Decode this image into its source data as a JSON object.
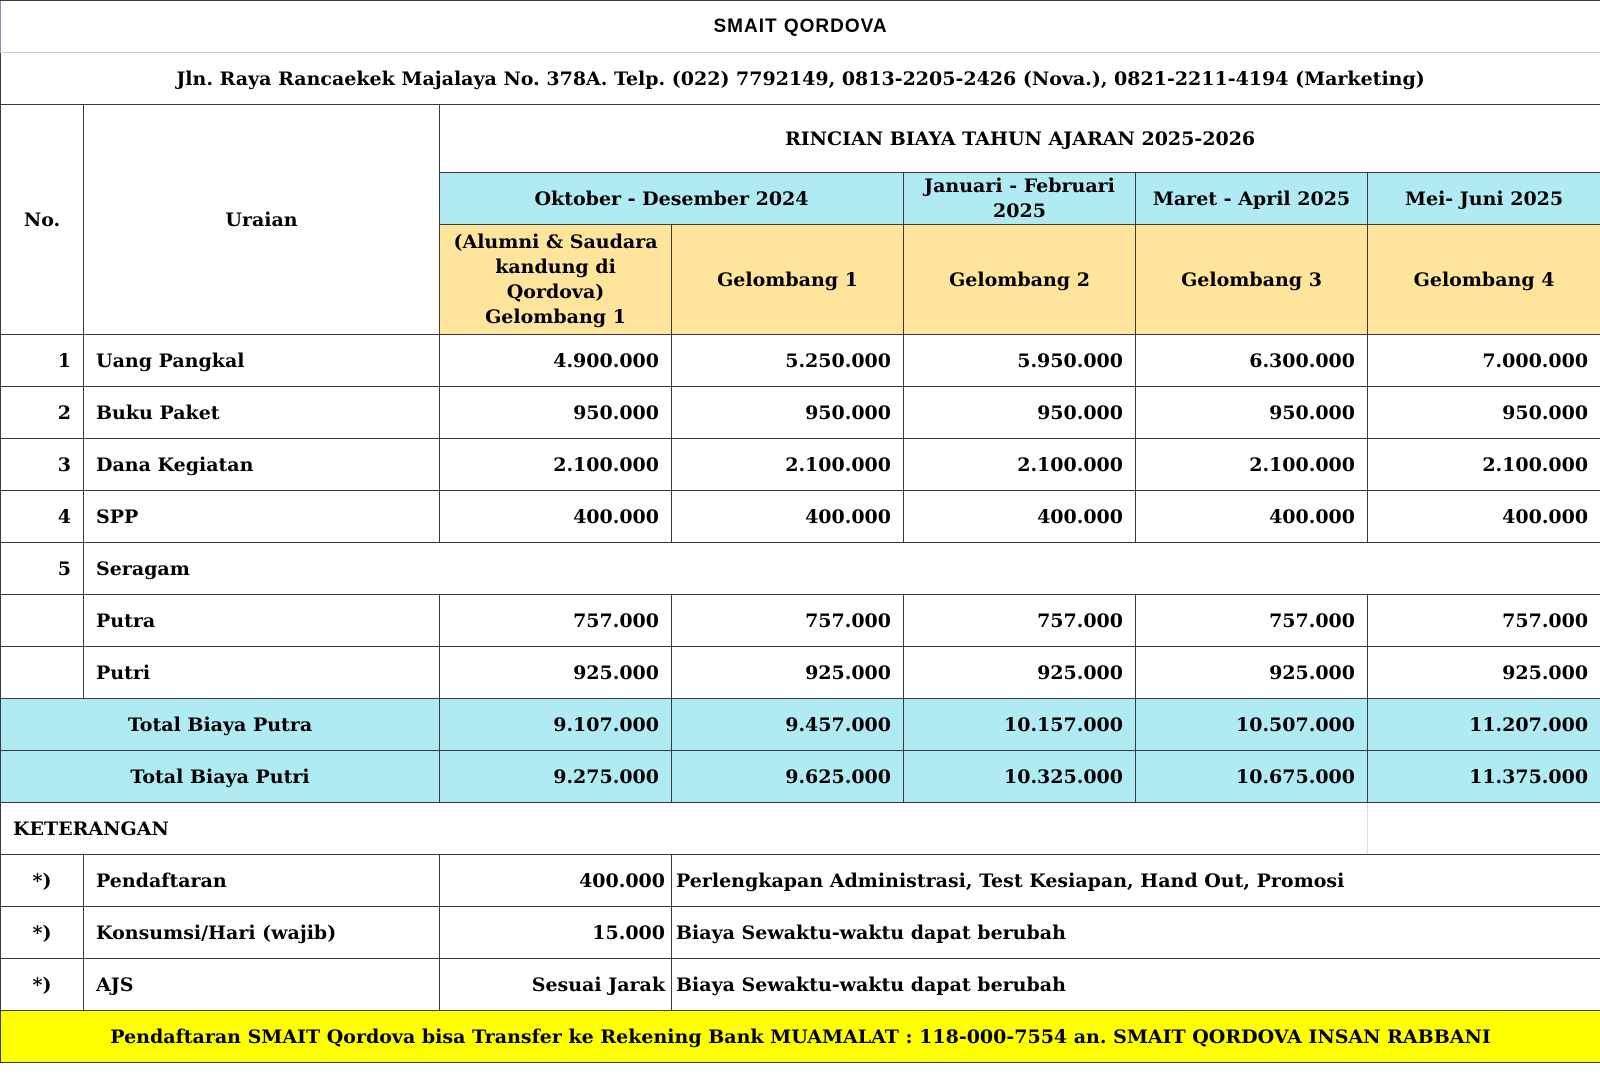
{
  "header": {
    "title": "SMAIT QORDOVA",
    "address": "Jln. Raya Rancaekek Majalaya No. 378A. Telp. (022) 7792149, 0813-2205-2426 (Nova.),  0821-2211-4194 (Marketing)"
  },
  "table_head": {
    "no_label": "No.",
    "uraian_label": "Uraian",
    "section_title": "RINCIAN BIAYA TAHUN AJARAN 2025-2026",
    "periods": [
      "Oktober - Desember 2024",
      "Januari - Februari 2025",
      "Maret - April 2025",
      "Mei- Juni 2025"
    ],
    "waves": [
      "(Alumni & Saudara kandung di Qordova) Gelombang 1",
      "Gelombang 1",
      "Gelombang 2",
      "Gelombang 3",
      "Gelombang 4"
    ]
  },
  "rows": [
    {
      "no": "1",
      "label": "Uang Pangkal",
      "values": [
        "4.900.000",
        "5.250.000",
        "5.950.000",
        "6.300.000",
        "7.000.000"
      ]
    },
    {
      "no": "2",
      "label": "Buku Paket",
      "values": [
        "950.000",
        "950.000",
        "950.000",
        "950.000",
        "950.000"
      ]
    },
    {
      "no": "3",
      "label": "Dana Kegiatan",
      "values": [
        "2.100.000",
        "2.100.000",
        "2.100.000",
        "2.100.000",
        "2.100.000"
      ]
    },
    {
      "no": "4",
      "label": "SPP",
      "values": [
        "400.000",
        "400.000",
        "400.000",
        "400.000",
        "400.000"
      ]
    },
    {
      "no": "5",
      "label": "Seragam"
    },
    {
      "label": "Putra",
      "values": [
        "757.000",
        "757.000",
        "757.000",
        "757.000",
        "757.000"
      ]
    },
    {
      "label": "Putri",
      "values": [
        "925.000",
        "925.000",
        "925.000",
        "925.000",
        "925.000"
      ]
    }
  ],
  "totals": [
    {
      "label": "Total Biaya Putra",
      "values": [
        "9.107.000",
        "9.457.000",
        "10.157.000",
        "10.507.000",
        "11.207.000"
      ]
    },
    {
      "label": "Total Biaya Putri",
      "values": [
        "9.275.000",
        "9.625.000",
        "10.325.000",
        "10.675.000",
        "11.375.000"
      ]
    }
  ],
  "notes": {
    "heading": "KETERANGAN",
    "items": [
      {
        "mark": "*)",
        "label": "Pendaftaran",
        "value": "400.000",
        "desc": "Perlengkapan Administrasi, Test Kesiapan, Hand Out, Promosi"
      },
      {
        "mark": "*)",
        "label": "Konsumsi/Hari (wajib)",
        "value": "15.000",
        "desc": "Biaya Sewaktu-waktu dapat berubah"
      },
      {
        "mark": "*)",
        "label": "AJS",
        "value": "Sesuai Jarak",
        "desc": "Biaya Sewaktu-waktu dapat berubah"
      }
    ]
  },
  "footer": {
    "transfer_note": "Pendaftaran SMAIT Qordova bisa Transfer ke Rekening Bank MUAMALAT : 118-000-7554 an. SMAIT QORDOVA INSAN RABBANI"
  },
  "colors": {
    "header_cyan": "#b0eaf3",
    "wave_peach": "#ffe49b",
    "footer_yellow": "#ffff00"
  }
}
